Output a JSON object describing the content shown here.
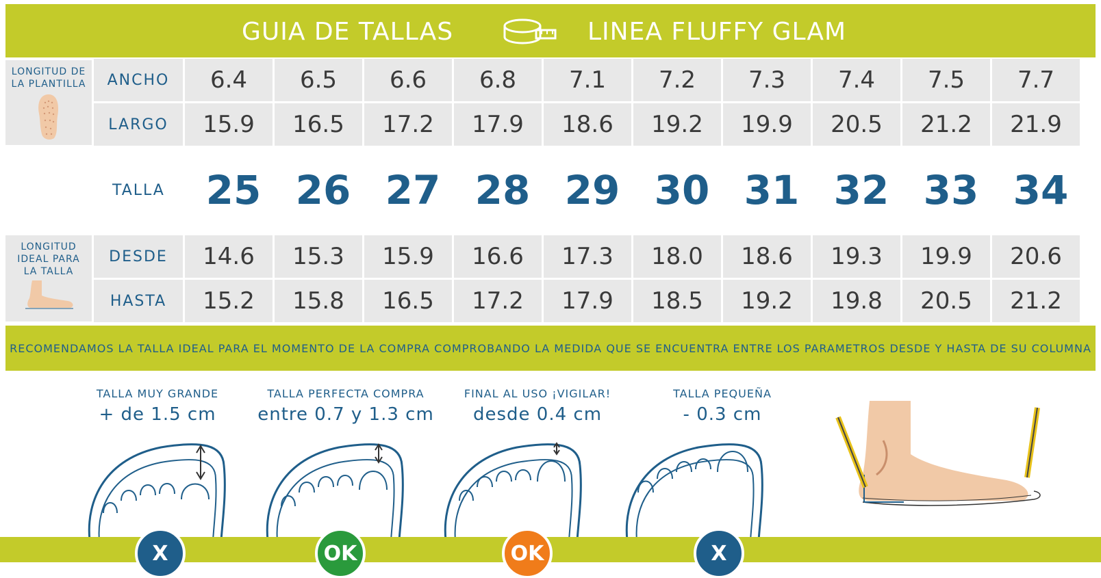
{
  "header": {
    "left_title": "GUIA DE TALLAS",
    "right_title": "LINEA FLUFFY GLAM"
  },
  "insole": {
    "caption_line1": "LONGITUD DE",
    "caption_line2": "LA PLANTILLA",
    "ancho_label": "ANCHO",
    "largo_label": "LARGO"
  },
  "ideal": {
    "caption_line1": "LONGITUD",
    "caption_line2": "IDEAL PARA",
    "caption_line3": "LA TALLA",
    "desde_label": "DESDE",
    "hasta_label": "HASTA"
  },
  "talla_label": "TALLA",
  "ancho": [
    "6.4",
    "6.5",
    "6.6",
    "6.8",
    "7.1",
    "7.2",
    "7.3",
    "7.4",
    "7.5",
    "7.7"
  ],
  "largo": [
    "15.9",
    "16.5",
    "17.2",
    "17.9",
    "18.6",
    "19.2",
    "19.9",
    "20.5",
    "21.2",
    "21.9"
  ],
  "tallas": [
    "25",
    "26",
    "27",
    "28",
    "29",
    "30",
    "31",
    "32",
    "33",
    "34"
  ],
  "desde": [
    "14.6",
    "15.3",
    "15.9",
    "16.6",
    "17.3",
    "18.0",
    "18.6",
    "19.3",
    "19.9",
    "20.6"
  ],
  "hasta": [
    "15.2",
    "15.8",
    "16.5",
    "17.2",
    "17.9",
    "18.5",
    "19.2",
    "19.8",
    "20.5",
    "21.2"
  ],
  "banner": "RECOMENDAMOS LA TALLA IDEAL PARA EL MOMENTO DE LA COMPRA COMPROBANDO LA MEDIDA QUE SE ENCUENTRA ENTRE LOS PARAMETROS DESDE Y HASTA DE SU COLUMNA",
  "recommendations": [
    {
      "title": "TALLA MUY GRANDE",
      "value": "+ de 1.5 cm",
      "badge": "X",
      "color": "#1f5e8a"
    },
    {
      "title": "TALLA PERFECTA COMPRA",
      "value": "entre 0.7 y 1.3 cm",
      "badge": "OK",
      "color": "#2a9a3c"
    },
    {
      "title": "FINAL AL USO ¡VIGILAR!",
      "value": "desde 0.4 cm",
      "badge": "OK",
      "color": "#f07c1a"
    },
    {
      "title": "TALLA PEQUEÑA",
      "value": "- 0.3 cm",
      "badge": "X",
      "color": "#1f5e8a"
    }
  ],
  "colors": {
    "accent": "#c3cb2a",
    "text_blue": "#1f5e8a",
    "cell_bg": "#e8e8e8"
  }
}
